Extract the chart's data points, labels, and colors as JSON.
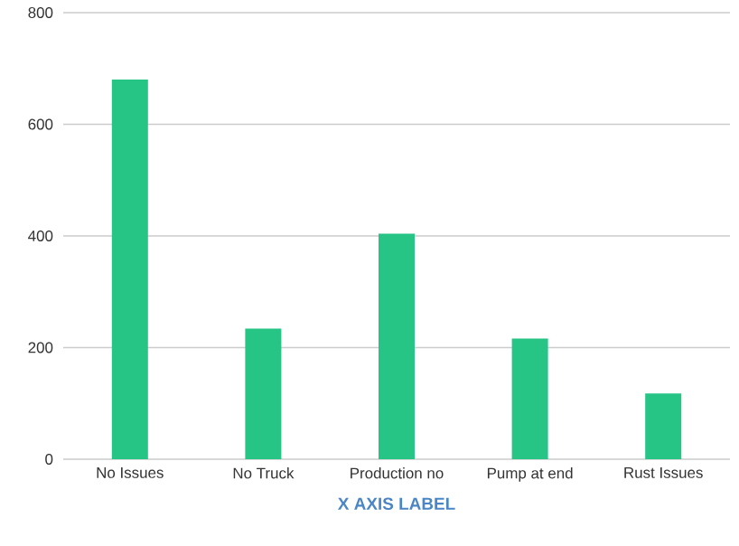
{
  "chart_data": {
    "type": "bar",
    "xlabel": "X AXIS LABEL",
    "categories": [
      "No Issues",
      "No Truck",
      "Production no",
      "Pump at end",
      "Rust Issues"
    ],
    "values": [
      680,
      234,
      404,
      216,
      118
    ],
    "color": "#26c485",
    "ylim": [
      0,
      800
    ],
    "yticks": [
      0,
      200,
      400,
      600,
      800
    ],
    "grid": "y"
  }
}
